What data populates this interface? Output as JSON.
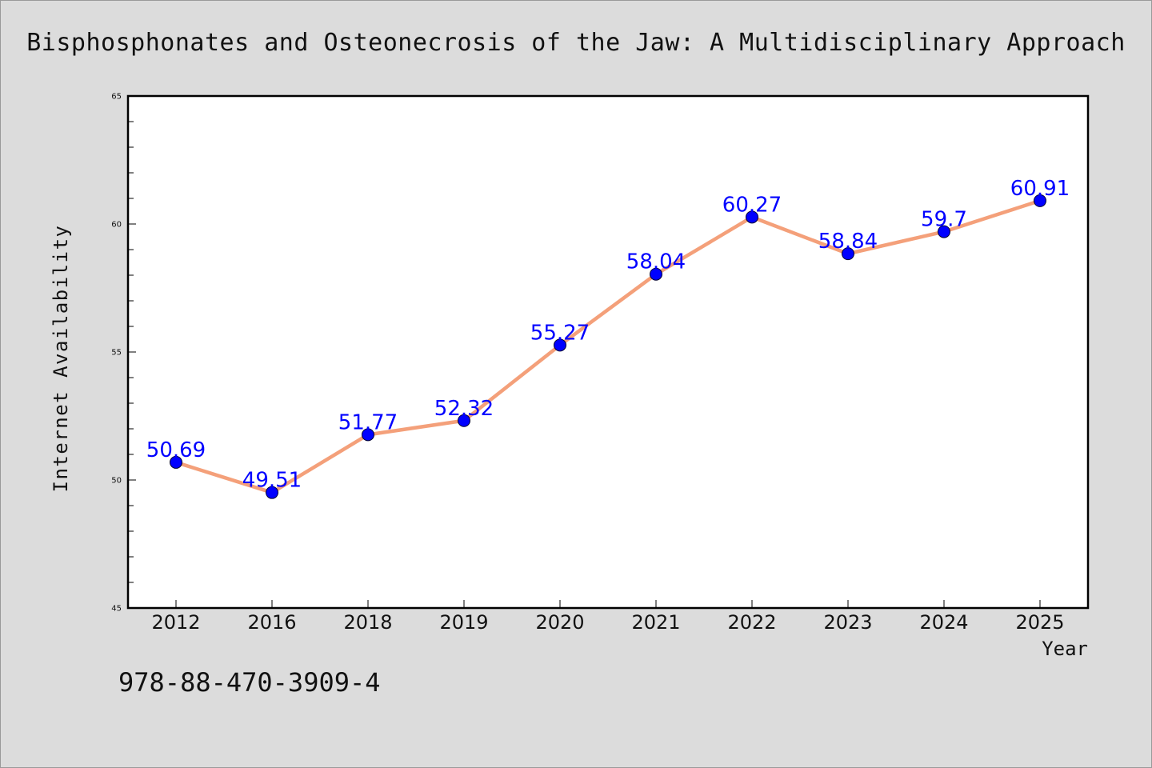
{
  "chart_data": {
    "type": "line",
    "title": "Bisphosphonates and Osteonecrosis of the Jaw: A Multidisciplinary Approach",
    "xlabel": "Year",
    "ylabel": "Internet Availability",
    "categories": [
      "2012",
      "2016",
      "2018",
      "2019",
      "2020",
      "2021",
      "2022",
      "2023",
      "2024",
      "2025"
    ],
    "values": [
      50.69,
      49.51,
      51.77,
      52.32,
      55.27,
      58.04,
      60.27,
      58.84,
      59.7,
      60.91
    ],
    "data_labels": [
      "50.69",
      "49.51",
      "51.77",
      "52.32",
      "55.27",
      "58.04",
      "60.27",
      "58.84",
      "59.7",
      "60.91"
    ],
    "ylim": [
      45,
      65
    ],
    "yticks": [
      45,
      50,
      55,
      60,
      65
    ],
    "grid": false,
    "line_color": "#f4a07a",
    "marker_color": "#0000ff",
    "label_color": "#0000ff"
  },
  "footer": {
    "isbn": "978-88-470-3909-4"
  }
}
